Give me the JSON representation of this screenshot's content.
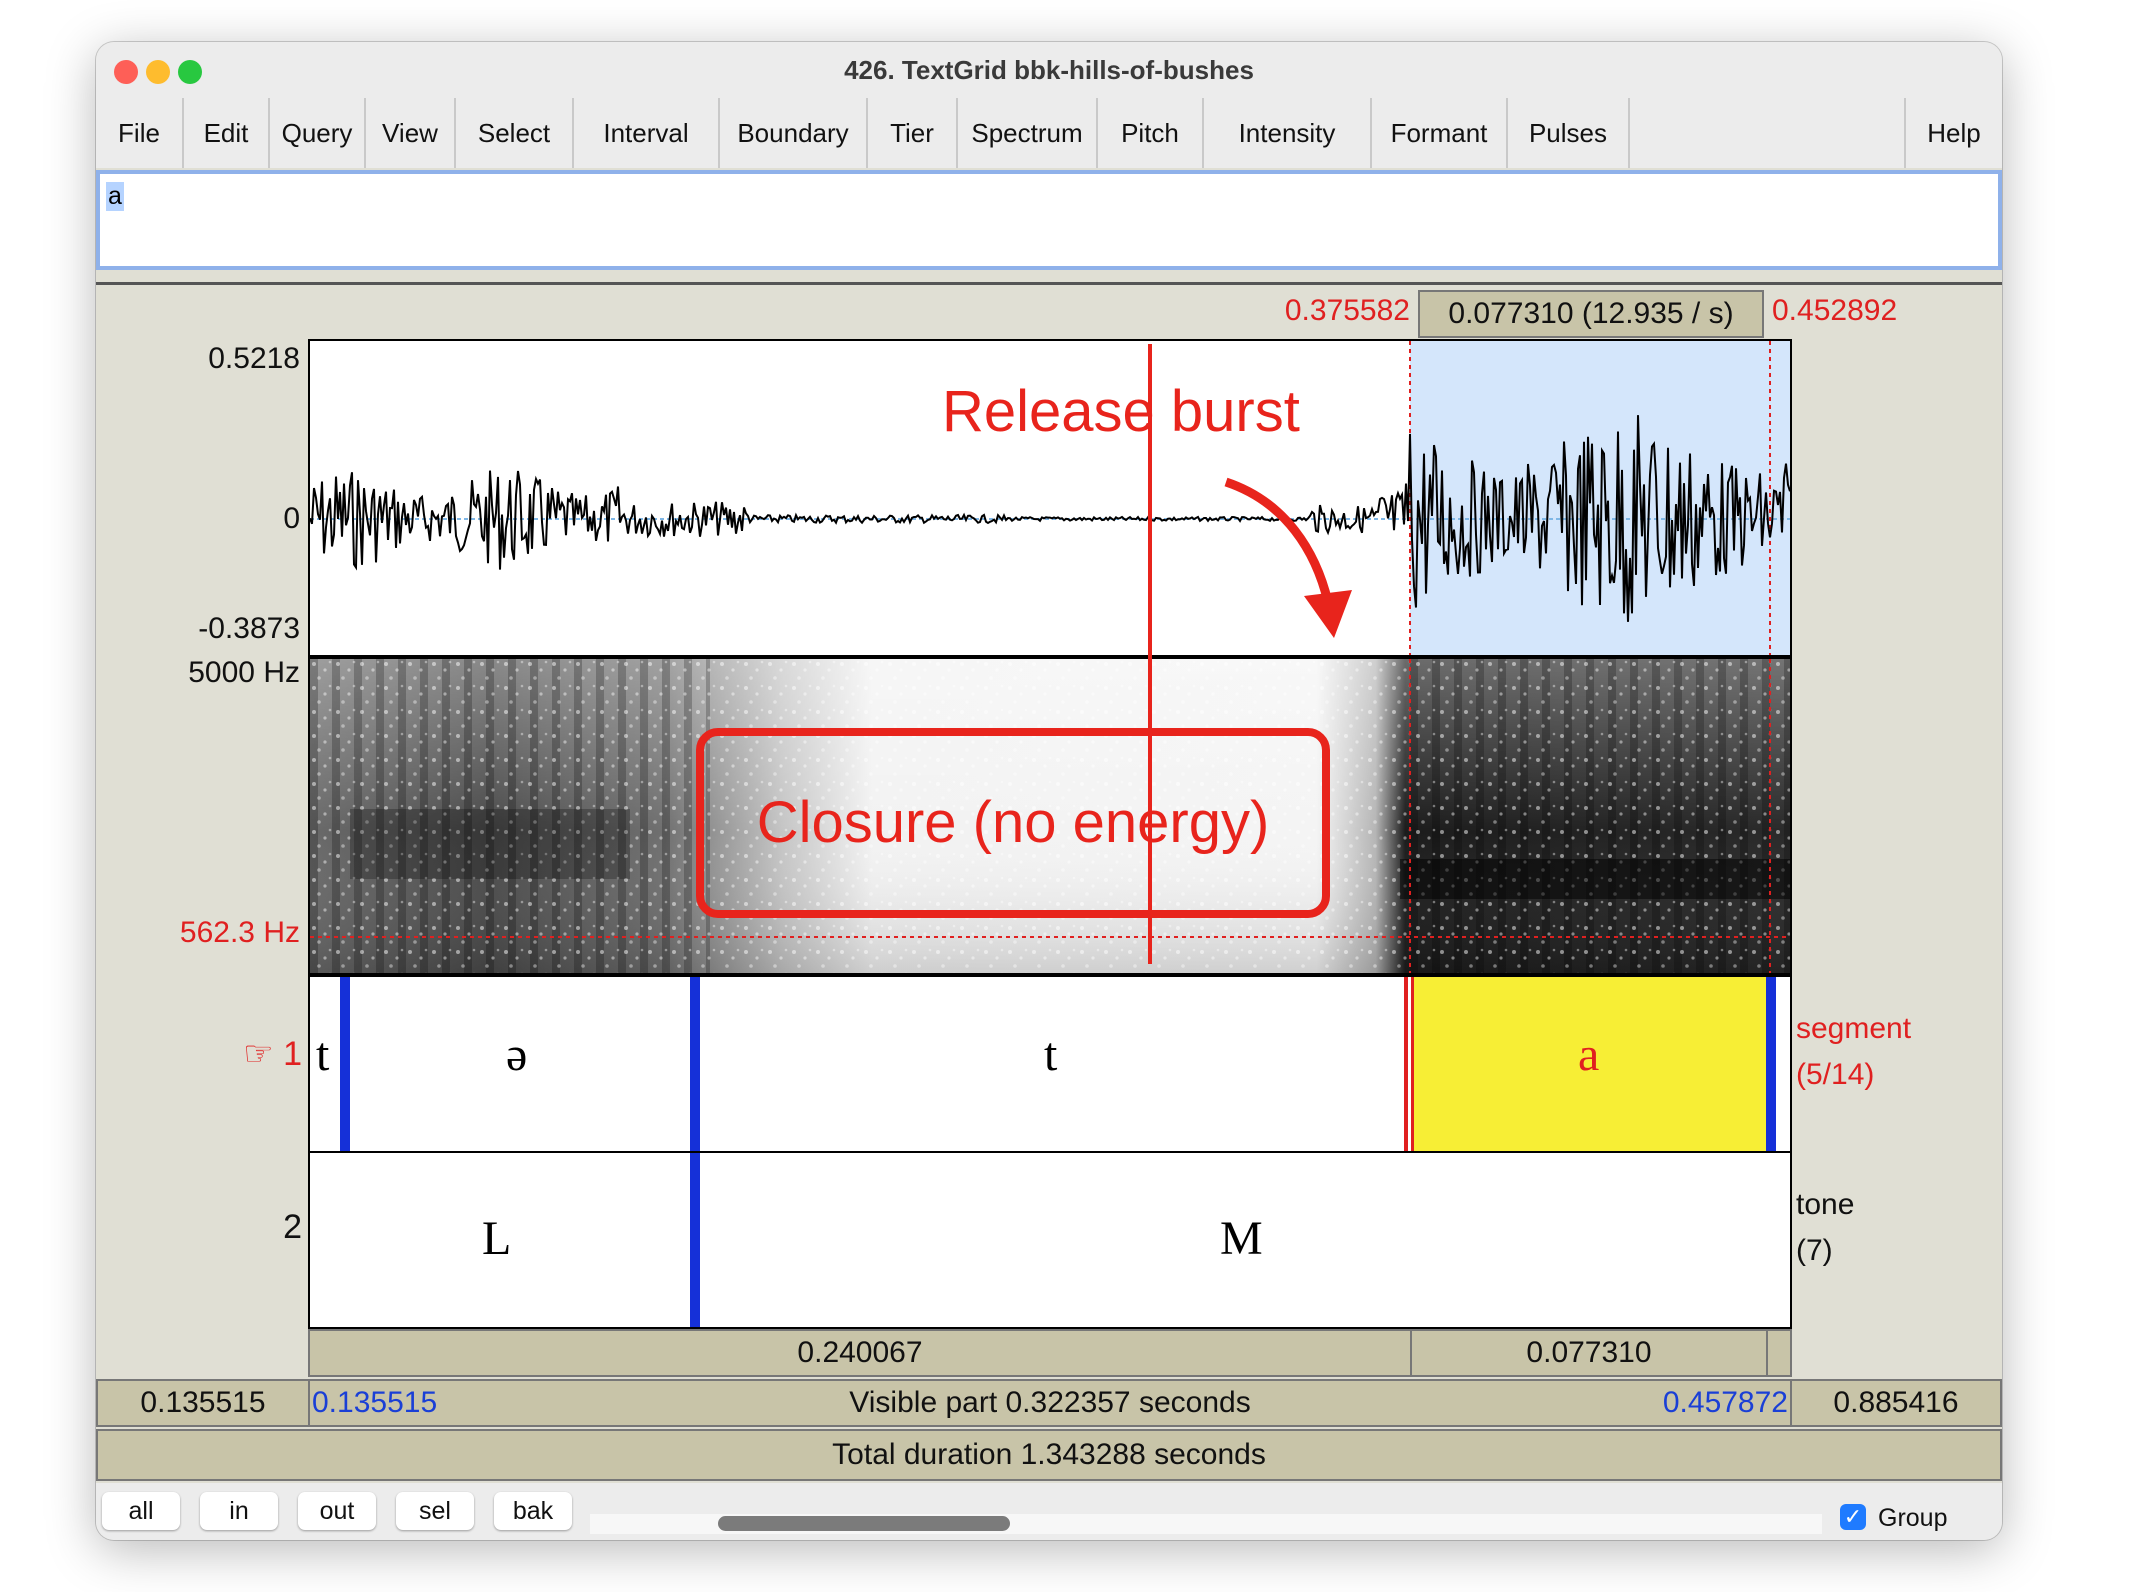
{
  "window": {
    "title": "426. TextGrid bbk-hills-of-bushes",
    "traffic_colors": {
      "close": "#fe5f57",
      "minimize": "#febc2e",
      "zoom": "#28c840"
    }
  },
  "menu": [
    "File",
    "Edit",
    "Query",
    "View",
    "Select",
    "Interval",
    "Boundary",
    "Tier",
    "Spectrum",
    "Pitch",
    "Intensity",
    "Formant",
    "Pulses"
  ],
  "help": "Help",
  "text_field": {
    "value": "a"
  },
  "selection": {
    "start": "0.375582",
    "duration": "0.077310 (12.935 / s)",
    "end": "0.452892"
  },
  "waveform": {
    "max": "0.5218",
    "zero": "0",
    "min": "-0.3873"
  },
  "spectrogram": {
    "top": "5000 Hz",
    "cursor": "562.3 Hz"
  },
  "annotations": {
    "release": "Release burst",
    "closure": "Closure (no energy)"
  },
  "tiers": [
    {
      "number": "☞ 1",
      "name": "segment",
      "count": "(5/14)",
      "labels": [
        "t",
        "ə",
        "t",
        "a"
      ]
    },
    {
      "number": "2",
      "name": "tone",
      "count": "(7)",
      "labels": [
        "L",
        "M"
      ]
    }
  ],
  "durations": [
    "0.240067",
    "0.077310"
  ],
  "visible": {
    "left_outside": "0.135515",
    "start": "0.135515",
    "text": "Visible part 0.322357 seconds",
    "end": "0.457872",
    "right_outside": "0.885416"
  },
  "total": "Total duration 1.343288 seconds",
  "buttons": [
    "all",
    "in",
    "out",
    "sel",
    "bak"
  ],
  "group": {
    "label": "Group",
    "checked": true
  },
  "colors": {
    "accent_red": "#e02020",
    "boundary_blue": "#1530d8",
    "selected_interval": "#f7ee35",
    "selection_tint": "#d4e6fb"
  }
}
